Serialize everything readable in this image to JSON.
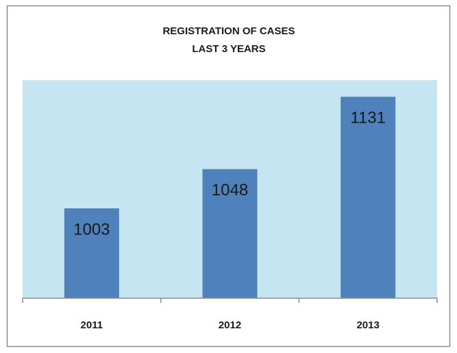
{
  "chart_data": {
    "type": "bar",
    "title": [
      "REGISTRATION OF CASES",
      "LAST 3 YEARS"
    ],
    "categories": [
      "2011",
      "2012",
      "2013"
    ],
    "values": [
      1003,
      1048,
      1131
    ],
    "color": "#4f81bd",
    "plot_color": "#c6e5f3",
    "ylim": [
      900,
      1150
    ]
  }
}
